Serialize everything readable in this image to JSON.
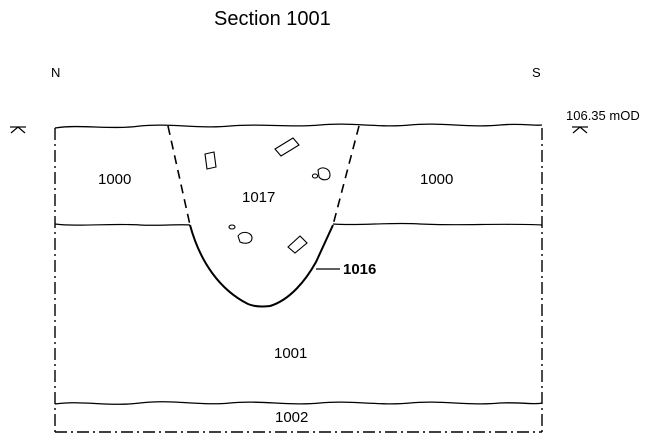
{
  "title": "Section 1001",
  "orientation": {
    "left": "N",
    "right": "S"
  },
  "datum": {
    "label": "106.35 mOD"
  },
  "contexts": {
    "c1000_left": "1000",
    "c1000_right": "1000",
    "c1017": "1017",
    "c1016": "1016",
    "c1001": "1001",
    "c1002": "1002"
  }
}
